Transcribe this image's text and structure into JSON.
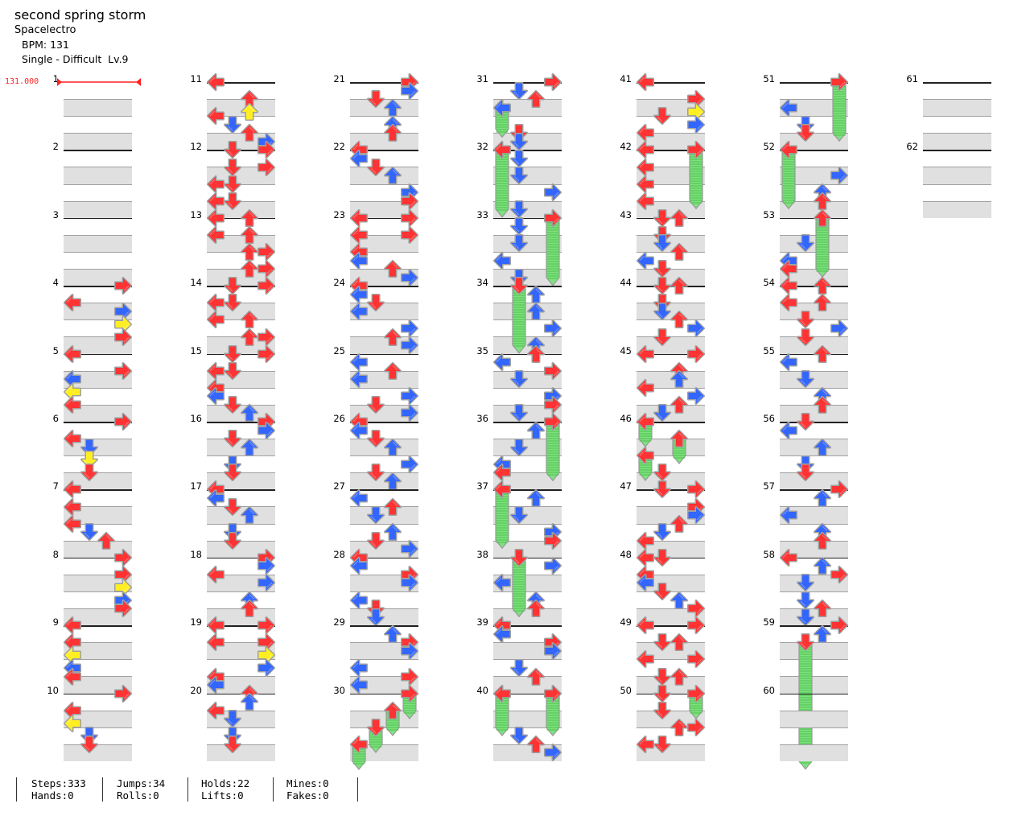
{
  "header": {
    "title": "second spring storm",
    "artist": "Spacelectro",
    "bpm": "BPM: 131",
    "difficulty": "Single - Difficult  Lv.9"
  },
  "bpm_change": {
    "value": "131.000",
    "measure": 1
  },
  "colors": {
    "quarter": "#ff3333",
    "eighth": "#3366ff",
    "sixteenth": "#ffee22",
    "hold": "#7ee07e",
    "bpm": "#ff2020"
  },
  "stats": [
    {
      "top": "Steps:333",
      "bottom": "Hands:0"
    },
    {
      "top": "Jumps:34",
      "bottom": "Rolls:0"
    },
    {
      "top": "Holds:22",
      "bottom": "Lifts:0"
    },
    {
      "top": "Mines:0",
      "bottom": "Fakes:0"
    }
  ],
  "chart_data": {
    "type": "step-chart",
    "lanes": [
      "L",
      "D",
      "U",
      "R"
    ],
    "resolution": "16th notes per measure; token = position + lane, ~ = hold length in 16ths",
    "measures": [
      {
        "number": "1",
        "notes": ""
      },
      {
        "number": "2",
        "notes": ""
      },
      {
        "number": "3",
        "notes": ""
      },
      {
        "number": "4",
        "notes": "0R 4L 6R 9R 12R"
      },
      {
        "number": "5",
        "notes": "0L 4R 6L 9L 12L"
      },
      {
        "number": "6",
        "notes": "0R 4L 6D 9D 12D"
      },
      {
        "number": "7",
        "notes": "0L 4L 8L 10D 12U"
      },
      {
        "number": "8",
        "notes": "0R 4R 7R 10R 12R"
      },
      {
        "number": "9",
        "notes": "0L 4L 7L 10L 12L"
      },
      {
        "number": "10",
        "notes": "0R 4L 7L 10D 12D"
      },
      {
        "number": "11",
        "notes": "0L 4U 7U 8L 10D 12U 14R"
      },
      {
        "number": "12",
        "notes": "0D 0R 4D 4R 8L 8D 12L 12D"
      },
      {
        "number": "13",
        "notes": "0L 0U 4L 4U 8U 8R 12U 12R"
      },
      {
        "number": "14",
        "notes": "0D 0R 4L 4D 8L 8U 12U 12R"
      },
      {
        "number": "15",
        "notes": "0D 0R 4L 4D 8L 10L 12D 14U"
      },
      {
        "number": "16",
        "notes": "0R 2R 4D 6U 10D 12D"
      },
      {
        "number": "17",
        "notes": "0L 2L 4D 6U 10D 12D"
      },
      {
        "number": "18",
        "notes": "0R 2R 4L 6R 10U 12U"
      },
      {
        "number": "19",
        "notes": "0L 0R 4L 4R 7R 10R 12L 14L"
      },
      {
        "number": "20",
        "notes": "0U 2U 4L 6D 10D 12D"
      },
      {
        "number": "21",
        "notes": "0R 2R 4D 6U 10U 12U"
      },
      {
        "number": "22",
        "notes": "0L 2L 4D 6U 10R 12R"
      },
      {
        "number": "23",
        "notes": "0L 0R 4L 4R 8L 10L 12U 14R"
      },
      {
        "number": "24",
        "notes": "0L 2L 4D 6L 10R 12U 14R"
      },
      {
        "number": "25",
        "notes": "2L 4U 6L 10R 12D 14R"
      },
      {
        "number": "26",
        "notes": "0L 2L 4D 6U 10R 12D 14U"
      },
      {
        "number": "27",
        "notes": "2L 4U 6D 10U 12D 14R"
      },
      {
        "number": "28",
        "notes": "0L 2L 4R 6R 10L 12D 14D"
      },
      {
        "number": "29",
        "notes": "2U 4R 6R 10L 12R 14L"
      },
      {
        "number": "30",
        "notes": "0R~4 4U~4 8D~4 12L~4"
      },
      {
        "number": "31",
        "notes": "0R 2D 4U 6L~5 12D 14D"
      },
      {
        "number": "32",
        "notes": "0L~14 2D 6D 10R 14D"
      },
      {
        "number": "33",
        "notes": "0R~14 2D 6D 10L 14D"
      },
      {
        "number": "34",
        "notes": "0D~14 2U 6U 10R 14U"
      },
      {
        "number": "35",
        "notes": "0U 2L 4R 6D 10R 12R 14D"
      },
      {
        "number": "36",
        "notes": "0R~12 2U 6D 10L 12L"
      },
      {
        "number": "37",
        "notes": "0L~12 2U 6D 10R 12R"
      },
      {
        "number": "38",
        "notes": "0D~12 2R 6L 10U 12U"
      },
      {
        "number": "39",
        "notes": "0L 2L 4R 6R 10D 12U"
      },
      {
        "number": "40",
        "notes": "0L~8 0R~8 10D 12U 14R"
      },
      {
        "number": "41",
        "notes": "0L 4R 7R 8D 10R 12L"
      },
      {
        "number": "42",
        "notes": "0L 0R~12 4L 8L 12L"
      },
      {
        "number": "43",
        "notes": "0D 0U 4D 6D 8U 10L 12D"
      },
      {
        "number": "44",
        "notes": "0D 0U 4D 6D 8U 10R 12D"
      },
      {
        "number": "45",
        "notes": "0L 0R 4U 6U 8L 10R 12U 14D"
      },
      {
        "number": "46",
        "notes": "0L~4 4U~4 8L~4 12D"
      },
      {
        "number": "47",
        "notes": "0D 0R 4R 6R 8U 10D 12L"
      },
      {
        "number": "48",
        "notes": "0L 0D 4L 6L 8D 10U 12R"
      },
      {
        "number": "49",
        "notes": "0L 0R 4D 4U 8L 8R 12D 12U"
      },
      {
        "number": "50",
        "notes": "0D 0R~4 4D 8U 8R 12L 12D"
      },
      {
        "number": "51",
        "notes": "0R~12 6L 10D 12D"
      },
      {
        "number": "52",
        "notes": "0L~12 6R 10U 12U"
      },
      {
        "number": "53",
        "notes": "0U~12 6D 10L 12L"
      },
      {
        "number": "54",
        "notes": "0L 0U 4L 4U 8D 10R 12D"
      },
      {
        "number": "55",
        "notes": "0U 2L 6D 10U 12U"
      },
      {
        "number": "56",
        "notes": "0D 2L 6U 10D 12D"
      },
      {
        "number": "57",
        "notes": "0R 2U 6L 10U 12U"
      },
      {
        "number": "58",
        "notes": "0L 2U 4R 6D 10D 12U 14D"
      },
      {
        "number": "59",
        "notes": "0R 2U 4D~28"
      },
      {
        "number": "60",
        "notes": ""
      },
      {
        "number": "61",
        "notes": ""
      },
      {
        "number": "62",
        "notes": ""
      }
    ]
  }
}
